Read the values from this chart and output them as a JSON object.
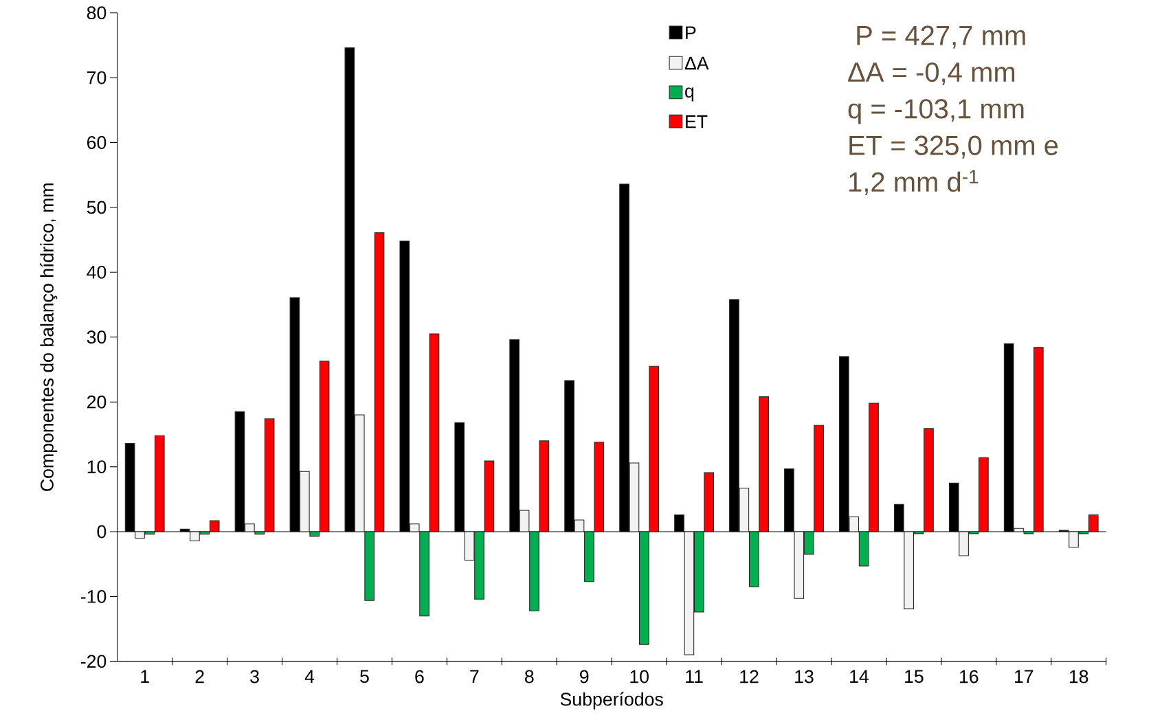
{
  "chart_data": {
    "type": "bar",
    "xlabel": "Subperíodos",
    "ylabel": "Componentes do balanço hídrico, mm",
    "categories": [
      "1",
      "2",
      "3",
      "4",
      "5",
      "6",
      "7",
      "8",
      "9",
      "10",
      "11",
      "12",
      "13",
      "14",
      "15",
      "16",
      "17",
      "18"
    ],
    "series": [
      {
        "name": "P",
        "color": "#000000",
        "values": [
          13.6,
          0.4,
          18.5,
          36.1,
          74.6,
          44.8,
          16.8,
          29.6,
          23.3,
          53.6,
          2.6,
          35.8,
          9.7,
          27.0,
          4.2,
          7.5,
          29.0,
          0.2
        ]
      },
      {
        "name": "ΔA",
        "color": "#f2f2f2",
        "values": [
          -1.0,
          -1.4,
          1.2,
          9.3,
          18.0,
          1.2,
          -4.4,
          3.3,
          1.8,
          10.6,
          -19.0,
          6.7,
          -10.3,
          2.3,
          -11.9,
          -3.7,
          0.5,
          -2.4
        ]
      },
      {
        "name": "q",
        "color": "#00b050",
        "values": [
          -0.4,
          -0.4,
          -0.4,
          -0.7,
          -10.6,
          -13.0,
          -10.4,
          -12.2,
          -7.7,
          -17.4,
          -12.4,
          -8.5,
          -3.5,
          -5.3,
          -0.3,
          -0.3,
          -0.3,
          -0.3
        ]
      },
      {
        "name": "ET",
        "color": "#ff0000",
        "values": [
          14.8,
          1.7,
          17.4,
          26.3,
          46.1,
          30.5,
          10.9,
          14.0,
          13.8,
          25.5,
          9.1,
          20.8,
          16.4,
          19.8,
          15.9,
          11.4,
          28.4,
          2.6
        ]
      }
    ],
    "ylim": [
      -20,
      80
    ],
    "yticks": [
      -20,
      -10,
      0,
      10,
      20,
      30,
      40,
      50,
      60,
      70,
      80
    ],
    "legend": "top right",
    "annotations": [
      " P = 427,7 mm",
      "ΔA = -0,4 mm",
      "q = -103,1 mm",
      "ET = 325,0 mm e",
      "1,2 mm d$^{-1}$"
    ]
  }
}
